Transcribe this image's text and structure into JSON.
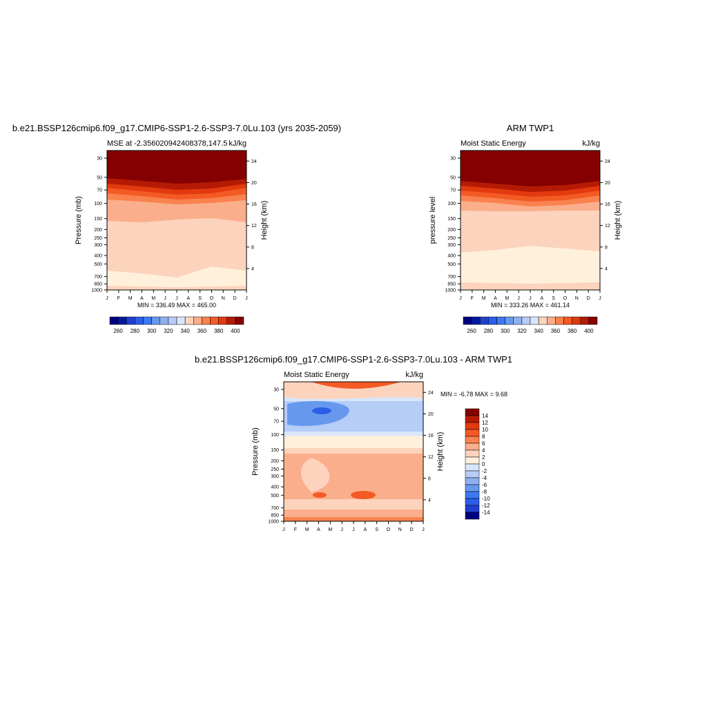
{
  "panels": [
    {
      "title": "b.e21.BSSP126cmip6.f09_g17.CMIP6-SSP1-2.6-SSP3-7.0Lu.103 (yrs 2035-2059)",
      "left_label": "MSE at -2.356020942408378,147.5",
      "right_label": "kJ/kg",
      "y_label": "Pressure (mb)",
      "y2_label": "Height (km)",
      "stats": "MIN = 336.49 MAX = 465.00"
    },
    {
      "title": "ARM TWP1",
      "left_label": "Moist Static Energy",
      "right_label": "kJ/kg",
      "y_label": "pressure level",
      "y2_label": "Height (km)",
      "stats": "MIN = 333.26 MAX = 461.14"
    },
    {
      "title": "b.e21.BSSP126cmip6.f09_g17.CMIP6-SSP1-2.6-SSP3-7.0Lu.103 - ARM TWP1",
      "left_label": "Moist Static Energy",
      "right_label": "kJ/kg",
      "y_label": "Pressure (mb)",
      "y2_label": "Height (km)",
      "stats": "MIN =  -6.78 MAX =   9.68"
    }
  ],
  "months": [
    "J",
    "F",
    "M",
    "A",
    "M",
    "J",
    "J",
    "A",
    "S",
    "O",
    "N",
    "D",
    "J"
  ],
  "pressure_ticks": [
    30,
    50,
    70,
    100,
    150,
    200,
    250,
    300,
    400,
    500,
    700,
    850,
    1000
  ],
  "height_ticks": [
    4,
    8,
    12,
    16,
    20,
    24
  ],
  "colors": [
    "#00007f",
    "#0019a0",
    "#1f3fcf",
    "#2a5ee8",
    "#3c78f0",
    "#6699ee",
    "#8fb0f0",
    "#b5cdf7",
    "#d9e6fa",
    "#fff0dc",
    "#fcd3bc",
    "#fbae8b",
    "#f9824f",
    "#f45a24",
    "#e23a0e",
    "#b51a04",
    "#850000"
  ],
  "colorbar_abs": {
    "labels": [
      260,
      280,
      300,
      320,
      340,
      360,
      380,
      400
    ]
  },
  "colorbar_diff": {
    "labels": [
      14,
      12,
      10,
      8,
      6,
      4,
      2,
      0,
      -2,
      -4,
      -6,
      -8,
      -10,
      -12,
      -14
    ]
  }
}
